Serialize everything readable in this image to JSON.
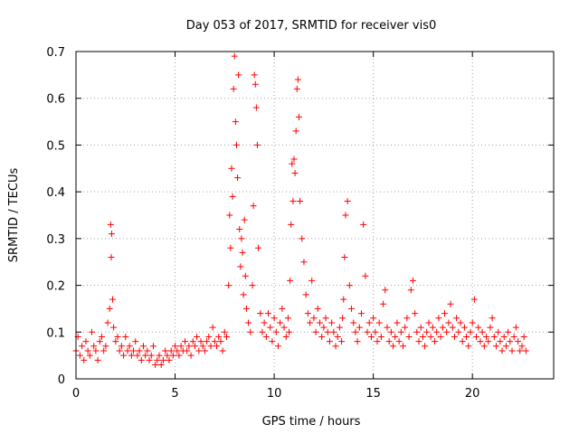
{
  "chart_data": {
    "type": "scatter",
    "title": "Day 053 of 2017, SRMTID for receiver vis0",
    "xlabel": "GPS time / hours",
    "ylabel": "SRMTID / TECUs",
    "xlim": [
      0,
      24.1
    ],
    "ylim": [
      0,
      0.7
    ],
    "xticks": [
      0,
      5,
      10,
      15,
      20
    ],
    "xtick_labels": [
      "0",
      "5",
      "10",
      "15",
      "20"
    ],
    "yticks": [
      0,
      0.1,
      0.2,
      0.3,
      0.4,
      0.5,
      0.6,
      0.7
    ],
    "ytick_labels": [
      "0",
      "0.1",
      "0.2",
      "0.3",
      "0.4",
      "0.5",
      "0.6",
      "0.7"
    ],
    "grid": true,
    "marker": "plus",
    "series": [
      {
        "name": "SRMTID",
        "color": "#ff0000",
        "x": [
          0.0,
          0.1,
          0.2,
          0.3,
          0.4,
          0.5,
          0.6,
          0.7,
          0.8,
          0.9,
          1.0,
          1.1,
          1.2,
          1.3,
          1.4,
          1.5,
          1.6,
          1.7,
          1.75,
          1.78,
          1.8,
          1.85,
          1.9,
          2.0,
          2.1,
          2.2,
          2.3,
          2.4,
          2.5,
          2.6,
          2.7,
          2.8,
          2.9,
          3.0,
          3.1,
          3.2,
          3.3,
          3.4,
          3.5,
          3.6,
          3.7,
          3.8,
          3.9,
          4.0,
          4.1,
          4.2,
          4.3,
          4.4,
          4.5,
          4.6,
          4.7,
          4.8,
          4.9,
          5.0,
          5.1,
          5.2,
          5.3,
          5.4,
          5.5,
          5.6,
          5.7,
          5.8,
          5.9,
          6.0,
          6.1,
          6.2,
          6.3,
          6.4,
          6.5,
          6.6,
          6.7,
          6.8,
          6.9,
          7.0,
          7.1,
          7.2,
          7.3,
          7.4,
          7.5,
          7.6,
          7.7,
          7.75,
          7.8,
          7.85,
          7.9,
          7.95,
          8.0,
          8.05,
          8.1,
          8.15,
          8.2,
          8.25,
          8.3,
          8.35,
          8.4,
          8.45,
          8.5,
          8.55,
          8.6,
          8.7,
          8.8,
          8.9,
          8.95,
          9.0,
          9.05,
          9.1,
          9.15,
          9.2,
          9.3,
          9.4,
          9.5,
          9.6,
          9.7,
          9.8,
          9.9,
          10.0,
          10.1,
          10.2,
          10.3,
          10.4,
          10.5,
          10.6,
          10.7,
          10.75,
          10.8,
          10.85,
          10.9,
          10.95,
          11.0,
          11.05,
          11.1,
          11.15,
          11.2,
          11.25,
          11.3,
          11.4,
          11.5,
          11.6,
          11.7,
          11.8,
          11.9,
          12.0,
          12.1,
          12.2,
          12.3,
          12.4,
          12.5,
          12.6,
          12.7,
          12.8,
          12.9,
          13.0,
          13.1,
          13.2,
          13.3,
          13.4,
          13.45,
          13.5,
          13.55,
          13.6,
          13.7,
          13.8,
          13.9,
          14.0,
          14.1,
          14.2,
          14.3,
          14.4,
          14.5,
          14.6,
          14.7,
          14.8,
          14.9,
          15.0,
          15.1,
          15.2,
          15.3,
          15.4,
          15.5,
          15.6,
          15.7,
          15.8,
          15.9,
          16.0,
          16.1,
          16.2,
          16.3,
          16.4,
          16.5,
          16.6,
          16.7,
          16.8,
          16.9,
          17.0,
          17.1,
          17.2,
          17.3,
          17.4,
          17.5,
          17.6,
          17.7,
          17.8,
          17.9,
          18.0,
          18.1,
          18.2,
          18.3,
          18.4,
          18.5,
          18.6,
          18.7,
          18.8,
          18.9,
          19.0,
          19.1,
          19.2,
          19.3,
          19.4,
          19.5,
          19.6,
          19.7,
          19.8,
          19.9,
          20.0,
          20.1,
          20.2,
          20.3,
          20.4,
          20.5,
          20.6,
          20.7,
          20.8,
          20.9,
          21.0,
          21.1,
          21.2,
          21.3,
          21.4,
          21.5,
          21.6,
          21.7,
          21.8,
          21.9,
          22.0,
          22.1,
          22.2,
          22.3,
          22.4,
          22.5,
          22.6,
          22.7
        ],
        "y": [
          0.06,
          0.09,
          0.05,
          0.07,
          0.04,
          0.08,
          0.06,
          0.05,
          0.1,
          0.07,
          0.06,
          0.04,
          0.08,
          0.09,
          0.06,
          0.07,
          0.12,
          0.15,
          0.33,
          0.26,
          0.31,
          0.17,
          0.11,
          0.08,
          0.09,
          0.06,
          0.07,
          0.05,
          0.09,
          0.06,
          0.07,
          0.05,
          0.06,
          0.08,
          0.05,
          0.06,
          0.04,
          0.07,
          0.05,
          0.06,
          0.04,
          0.05,
          0.07,
          0.03,
          0.04,
          0.05,
          0.03,
          0.04,
          0.06,
          0.05,
          0.04,
          0.06,
          0.05,
          0.07,
          0.06,
          0.05,
          0.07,
          0.06,
          0.08,
          0.06,
          0.07,
          0.05,
          0.08,
          0.07,
          0.09,
          0.06,
          0.08,
          0.07,
          0.06,
          0.08,
          0.09,
          0.07,
          0.11,
          0.08,
          0.07,
          0.09,
          0.08,
          0.06,
          0.1,
          0.09,
          0.2,
          0.35,
          0.28,
          0.45,
          0.39,
          0.62,
          0.69,
          0.55,
          0.5,
          0.43,
          0.65,
          0.32,
          0.24,
          0.3,
          0.27,
          0.18,
          0.34,
          0.22,
          0.15,
          0.12,
          0.1,
          0.2,
          0.37,
          0.65,
          0.63,
          0.58,
          0.5,
          0.28,
          0.14,
          0.1,
          0.12,
          0.09,
          0.14,
          0.11,
          0.08,
          0.13,
          0.1,
          0.07,
          0.12,
          0.15,
          0.11,
          0.09,
          0.13,
          0.1,
          0.21,
          0.33,
          0.46,
          0.38,
          0.47,
          0.44,
          0.53,
          0.62,
          0.64,
          0.56,
          0.38,
          0.3,
          0.25,
          0.18,
          0.14,
          0.12,
          0.21,
          0.13,
          0.1,
          0.15,
          0.12,
          0.09,
          0.11,
          0.13,
          0.1,
          0.08,
          0.12,
          0.1,
          0.07,
          0.09,
          0.11,
          0.08,
          0.13,
          0.17,
          0.26,
          0.35,
          0.38,
          0.2,
          0.15,
          0.12,
          0.1,
          0.08,
          0.11,
          0.14,
          0.33,
          0.22,
          0.1,
          0.12,
          0.09,
          0.13,
          0.1,
          0.08,
          0.12,
          0.09,
          0.16,
          0.19,
          0.11,
          0.08,
          0.1,
          0.07,
          0.09,
          0.12,
          0.08,
          0.1,
          0.07,
          0.11,
          0.13,
          0.09,
          0.19,
          0.21,
          0.14,
          0.1,
          0.08,
          0.11,
          0.09,
          0.07,
          0.1,
          0.12,
          0.09,
          0.11,
          0.08,
          0.1,
          0.13,
          0.09,
          0.11,
          0.14,
          0.1,
          0.12,
          0.16,
          0.11,
          0.09,
          0.13,
          0.1,
          0.12,
          0.08,
          0.11,
          0.09,
          0.07,
          0.1,
          0.12,
          0.17,
          0.09,
          0.11,
          0.08,
          0.1,
          0.07,
          0.09,
          0.08,
          0.11,
          0.13,
          0.09,
          0.07,
          0.1,
          0.08,
          0.06,
          0.09,
          0.07,
          0.1,
          0.08,
          0.06,
          0.09,
          0.11,
          0.08,
          0.06,
          0.07,
          0.09,
          0.06
        ]
      }
    ]
  }
}
